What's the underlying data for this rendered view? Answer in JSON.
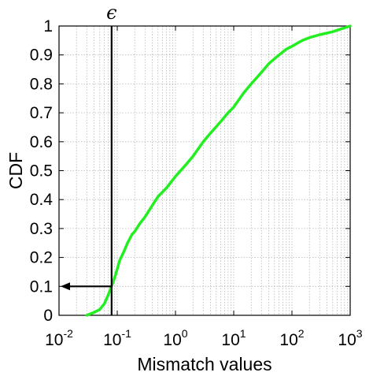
{
  "chart_data": {
    "type": "line",
    "xlabel": "Mismatch values",
    "ylabel": "CDF",
    "x_scale": "log",
    "xlim": [
      0.01,
      1000
    ],
    "ylim": [
      0,
      1
    ],
    "x_ticks": [
      {
        "value": 0.01,
        "base": "10",
        "exp": "-2"
      },
      {
        "value": 0.1,
        "base": "10",
        "exp": "-1"
      },
      {
        "value": 1,
        "base": "10",
        "exp": "0"
      },
      {
        "value": 10,
        "base": "10",
        "exp": "1"
      },
      {
        "value": 100,
        "base": "10",
        "exp": "2"
      },
      {
        "value": 1000,
        "base": "10",
        "exp": "3"
      }
    ],
    "y_ticks": [
      "0",
      "0.1",
      "0.2",
      "0.3",
      "0.4",
      "0.5",
      "0.6",
      "0.7",
      "0.8",
      "0.9",
      "1"
    ],
    "grid": true,
    "series": [
      {
        "color": "#22ee22",
        "x": [
          0.03,
          0.04,
          0.05,
          0.06,
          0.07,
          0.08,
          0.09,
          0.1,
          0.11,
          0.13,
          0.15,
          0.18,
          0.2,
          0.25,
          0.3,
          0.4,
          0.5,
          0.7,
          1,
          1.5,
          2,
          3,
          4,
          6,
          8,
          10,
          15,
          20,
          30,
          40,
          60,
          80,
          100,
          150,
          200,
          300,
          500,
          700,
          1000
        ],
        "y": [
          0,
          0.01,
          0.02,
          0.04,
          0.07,
          0.1,
          0.13,
          0.16,
          0.19,
          0.22,
          0.25,
          0.28,
          0.29,
          0.32,
          0.34,
          0.38,
          0.41,
          0.44,
          0.48,
          0.52,
          0.55,
          0.6,
          0.63,
          0.67,
          0.7,
          0.72,
          0.77,
          0.8,
          0.84,
          0.87,
          0.9,
          0.92,
          0.93,
          0.95,
          0.96,
          0.97,
          0.98,
          0.99,
          1.0
        ]
      }
    ],
    "annotations": {
      "threshold_symbol": "ϵ",
      "threshold_x": 0.08,
      "arrow_y": 0.1
    }
  }
}
